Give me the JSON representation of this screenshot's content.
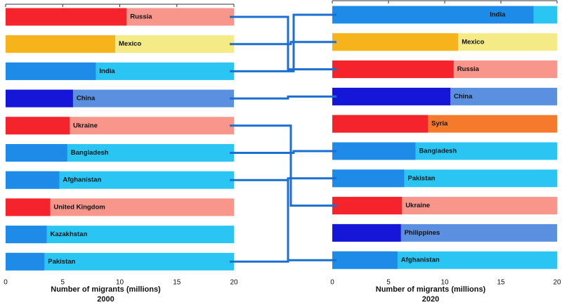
{
  "chart_data": [
    {
      "type": "bar",
      "orientation": "horizontal",
      "title": "2000",
      "xlabel": "Number of migrants (millions)",
      "categories": [
        "Russia",
        "Mexico",
        "India",
        "China",
        "Ukraine",
        "Bangladesh",
        "Afghanistan",
        "United Kingdom",
        "Kazakhstan",
        "Pakistan"
      ],
      "values": [
        10.6,
        9.6,
        7.9,
        5.9,
        5.6,
        5.4,
        4.7,
        3.9,
        3.6,
        3.4
      ],
      "colors": [
        "#f5232b",
        "#f6b31b",
        "#1e8be8",
        "#1616d9",
        "#f5232b",
        "#1e8be8",
        "#1e8be8",
        "#f5232b",
        "#1e8be8",
        "#1e8be8"
      ],
      "track_colors": [
        "#f8968c",
        "#f4ea86",
        "#2bc5f4",
        "#5b8fe0",
        "#f8968c",
        "#2bc5f4",
        "#2bc5f4",
        "#f8968c",
        "#2bc5f4",
        "#2bc5f4"
      ],
      "xlim": [
        0,
        20
      ],
      "xticks": [
        0,
        5,
        10,
        15,
        20
      ]
    },
    {
      "type": "bar",
      "orientation": "horizontal",
      "title": "2020",
      "xlabel": "Number of migrants (millions)",
      "categories": [
        "India",
        "Mexico",
        "Russia",
        "China",
        "Syria",
        "Bangladesh",
        "Pakistan",
        "Ukraine",
        "Philippines",
        "Afghanistan"
      ],
      "values": [
        17.9,
        11.2,
        10.8,
        10.5,
        8.5,
        7.4,
        6.4,
        6.2,
        6.1,
        5.8
      ],
      "colors": [
        "#1e8be8",
        "#f6b31b",
        "#f5232b",
        "#1616d9",
        "#f5232b",
        "#1e8be8",
        "#1e8be8",
        "#f5232b",
        "#1616d9",
        "#1e8be8"
      ],
      "track_colors": [
        "#2bc5f4",
        "#f4ea86",
        "#f8968c",
        "#5b8fe0",
        "#f57a2b",
        "#2bc5f4",
        "#2bc5f4",
        "#f8968c",
        "#5b8fe0",
        "#2bc5f4"
      ],
      "xlim": [
        0,
        20
      ],
      "xticks": [
        0,
        5,
        10,
        15,
        20
      ]
    }
  ]
}
